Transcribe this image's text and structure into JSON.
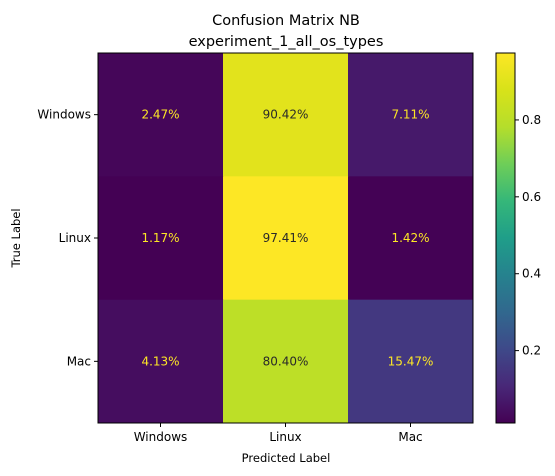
{
  "chart_data": {
    "type": "heatmap",
    "title": "Confusion Matrix NB",
    "subtitle": "experiment_1_all_os_types",
    "xlabel": "Predicted Label",
    "ylabel": "True Label",
    "x_categories": [
      "Windows",
      "Linux",
      "Mac"
    ],
    "y_categories": [
      "Windows",
      "Linux",
      "Mac"
    ],
    "values": [
      [
        0.0247,
        0.9042,
        0.0711
      ],
      [
        0.0117,
        0.9741,
        0.0142
      ],
      [
        0.0413,
        0.804,
        0.1547
      ]
    ],
    "cell_labels": [
      [
        "2.47%",
        "90.42%",
        "7.11%"
      ],
      [
        "1.17%",
        "97.41%",
        "1.42%"
      ],
      [
        "4.13%",
        "80.40%",
        "15.47%"
      ]
    ],
    "colormap": "viridis",
    "colorbar": {
      "range": [
        0.0117,
        0.9741
      ],
      "ticks": [
        0.2,
        0.4,
        0.6,
        0.8
      ],
      "tick_labels": [
        "0.2",
        "0.4",
        "0.6",
        "0.8"
      ]
    },
    "grid": false,
    "colors": {
      "text_on_dark": "#fde725",
      "text_on_light": "#2a2a2a"
    }
  }
}
